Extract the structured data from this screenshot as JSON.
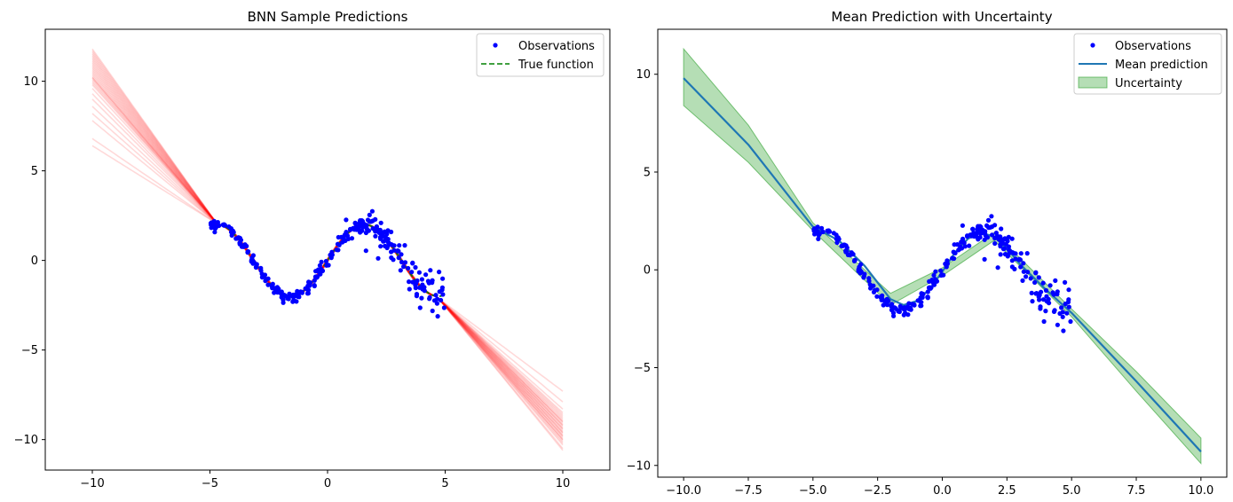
{
  "chart_data": [
    {
      "type": "line",
      "title": "BNN Sample Predictions",
      "xlabel": "",
      "ylabel": "",
      "xlim": [
        -12,
        12
      ],
      "ylim": [
        -11.7,
        12.9
      ],
      "xticks": [
        -10,
        -5,
        0,
        5,
        10
      ],
      "xtick_labels": [
        "−10",
        "−5",
        "0",
        "5",
        "10"
      ],
      "yticks": [
        -10,
        -5,
        0,
        5,
        10
      ],
      "ytick_labels": [
        "−10",
        "−5",
        "0",
        "5",
        "10"
      ],
      "grid": false,
      "legend_position": "upper right",
      "legend": [
        "Observations",
        "True function"
      ],
      "series": [
        {
          "name": "Observations",
          "kind": "scatter",
          "color": "#0000ff",
          "x_range": [
            -5,
            5
          ],
          "count": 300,
          "model": "2*sin(x) + noise",
          "noise_sd": 0.5
        },
        {
          "name": "True function",
          "kind": "line",
          "style": "dashed",
          "color": "#008000",
          "x_range": [
            -5,
            5
          ],
          "model": "2*sin(x)"
        },
        {
          "name": "",
          "kind": "sample-lines",
          "color": "#ff0000",
          "opacity": 0.15,
          "count": 30,
          "x_range": [
            -10,
            10
          ],
          "left_values_at_x_-10": [
            6.4,
            6.8,
            7.8,
            8.2,
            8.6,
            9.0,
            9.3,
            9.6,
            9.8,
            10.0,
            10.1,
            10.2,
            10.3,
            10.4,
            10.5,
            10.6,
            10.7,
            10.8,
            10.9,
            11.0,
            11.1,
            11.2,
            11.3,
            11.4,
            11.5,
            11.6,
            11.7,
            11.8,
            10.2,
            9.9
          ],
          "right_values_at_x_10": [
            -7.3,
            -7.9,
            -8.3,
            -8.5,
            -8.7,
            -8.8,
            -8.9,
            -9.0,
            -9.1,
            -9.2,
            -9.3,
            -9.4,
            -9.5,
            -9.6,
            -9.7,
            -9.8,
            -9.9,
            -10.0,
            -10.1,
            -10.2,
            -10.3,
            -10.5,
            -8.6,
            -9.0,
            -9.2,
            -9.4,
            -9.6,
            -9.8,
            -10.0,
            -10.6
          ]
        }
      ]
    },
    {
      "type": "line",
      "title": "Mean Prediction with Uncertainty",
      "xlabel": "",
      "ylabel": "",
      "xlim": [
        -11,
        11
      ],
      "ylim": [
        -10.6,
        12.3
      ],
      "xticks": [
        -10,
        -7.5,
        -5,
        -2.5,
        0,
        2.5,
        5,
        7.5,
        10
      ],
      "xtick_labels": [
        "−10.0",
        "−7.5",
        "−5.0",
        "−2.5",
        "0.0",
        "2.5",
        "5.0",
        "7.5",
        "10.0"
      ],
      "yticks": [
        -10,
        -5,
        0,
        5,
        10
      ],
      "ytick_labels": [
        "−10",
        "−5",
        "0",
        "5",
        "10"
      ],
      "grid": false,
      "legend_position": "upper right",
      "legend": [
        "Observations",
        "Mean prediction",
        "Uncertainty"
      ],
      "mean_points": {
        "x": [
          -10,
          -7.5,
          -5,
          -4,
          -3,
          -2,
          -1.5,
          -1,
          -0.5,
          0,
          0.5,
          1,
          1.5,
          2,
          2.5,
          3,
          4,
          5,
          7.5,
          10
        ],
        "y": [
          9.8,
          6.4,
          2.2,
          1.5,
          0.2,
          -1.5,
          -1.8,
          -1.6,
          -1.0,
          -0.1,
          0.9,
          1.6,
          1.9,
          1.7,
          1.1,
          0.3,
          -1.0,
          -2.2,
          -5.7,
          -9.3
        ]
      },
      "uncertainty": {
        "x": [
          -10,
          -7.5,
          -5,
          -2,
          0,
          2,
          5,
          7.5,
          10
        ],
        "lower": [
          8.4,
          5.5,
          2.0,
          -1.8,
          -0.3,
          1.5,
          -2.4,
          -6.2,
          -9.9
        ],
        "upper": [
          11.3,
          7.4,
          2.4,
          -1.2,
          0.1,
          1.9,
          -2.0,
          -5.2,
          -8.6
        ]
      },
      "series": [
        {
          "name": "Observations",
          "kind": "scatter",
          "color": "#0000ff",
          "x_range": [
            -5,
            5
          ],
          "count": 300,
          "model": "2*sin(x) + noise",
          "noise_sd": 0.5
        },
        {
          "name": "Mean prediction",
          "kind": "line",
          "color": "#1f77b4"
        },
        {
          "name": "Uncertainty",
          "kind": "band",
          "color": "#2ca02c",
          "opacity": 0.35
        }
      ]
    }
  ]
}
